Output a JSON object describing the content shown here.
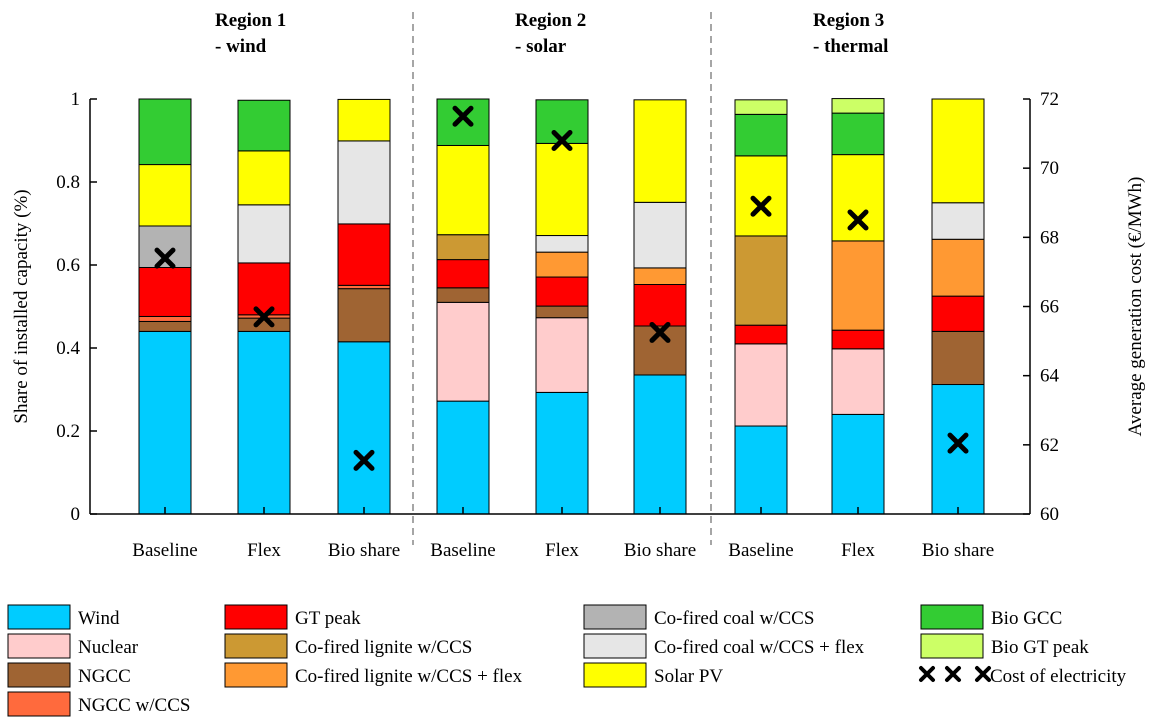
{
  "chart_data": {
    "type": "bar",
    "stacked": true,
    "regions": [
      {
        "title_line1": "Region 1",
        "title_line2": "- wind"
      },
      {
        "title_line1": "Region 2",
        "title_line2": "- solar"
      },
      {
        "title_line1": "Region 3",
        "title_line2": "- thermal"
      }
    ],
    "categories": [
      "Baseline",
      "Flex",
      "Bio share",
      "Baseline",
      "Flex",
      "Bio share",
      "Baseline",
      "Flex",
      "Bio share"
    ],
    "ylabel": "Share of installed capacity (%)",
    "y2label": "Average generation cost (€/MWh)",
    "ylim": [
      0,
      1
    ],
    "y2lim": [
      60,
      72
    ],
    "yticks": [
      "0",
      "0.2",
      "0.4",
      "0.6",
      "0.8",
      "1"
    ],
    "y2ticks": [
      "60",
      "62",
      "64",
      "66",
      "68",
      "70",
      "72"
    ],
    "series": [
      {
        "name": "Wind",
        "color": "#00CCFF",
        "values": [
          0.44,
          0.44,
          0.415,
          0.272,
          0.293,
          0.335,
          0.212,
          0.24,
          0.312
        ]
      },
      {
        "name": "Nuclear",
        "color": "#FFCCCC",
        "values": [
          0,
          0,
          0,
          0.238,
          0.18,
          0,
          0.198,
          0.158,
          0
        ]
      },
      {
        "name": "NGCC",
        "color": "#9F6433",
        "values": [
          0.024,
          0.032,
          0.128,
          0.035,
          0.028,
          0.118,
          0,
          0,
          0.128
        ]
      },
      {
        "name": "NGCC w/CCS",
        "color": "#FF6A3D",
        "values": [
          0.012,
          0.008,
          0.008,
          0,
          0,
          0,
          0,
          0,
          0
        ]
      },
      {
        "name": "GT peak",
        "color": "#FF0000",
        "values": [
          0.118,
          0.125,
          0.148,
          0.068,
          0.07,
          0.1,
          0.045,
          0.045,
          0.085
        ]
      },
      {
        "name": "Co-fired lignite w/CCS",
        "color": "#CC9933",
        "values": [
          0,
          0,
          0,
          0.06,
          0,
          0,
          0.215,
          0,
          0
        ]
      },
      {
        "name": "Co-fired lignite w/CCS + flex",
        "color": "#FF9933",
        "values": [
          0,
          0,
          0,
          0,
          0.06,
          0.04,
          0,
          0.215,
          0.137
        ]
      },
      {
        "name": "Co-fired coal w/CCS",
        "color": "#B3B3B3",
        "values": [
          0.1,
          0,
          0,
          0,
          0,
          0,
          0,
          0,
          0
        ]
      },
      {
        "name": "Co-fired coal w/CCS + flex",
        "color": "#E6E6E6",
        "values": [
          0,
          0.14,
          0.2,
          0,
          0.04,
          0.158,
          0,
          0,
          0.088
        ]
      },
      {
        "name": "Solar PV",
        "color": "#FFFF00",
        "values": [
          0.148,
          0.13,
          0.1,
          0.215,
          0.222,
          0.247,
          0.193,
          0.208,
          0.25
        ]
      },
      {
        "name": "Bio GCC",
        "color": "#33CC33",
        "values": [
          0.158,
          0.122,
          0,
          0.112,
          0.105,
          0,
          0.1,
          0.1,
          0
        ]
      },
      {
        "name": "Bio GT peak",
        "color": "#CCFF66",
        "values": [
          0,
          0,
          0,
          0,
          0,
          0,
          0.035,
          0.035,
          0
        ]
      }
    ],
    "cost_series": {
      "name": "Cost of electricity",
      "values": [
        67.4,
        65.7,
        61.55,
        71.5,
        70.8,
        65.25,
        68.9,
        68.5,
        62.05
      ]
    },
    "legend_placement": "bottom"
  }
}
